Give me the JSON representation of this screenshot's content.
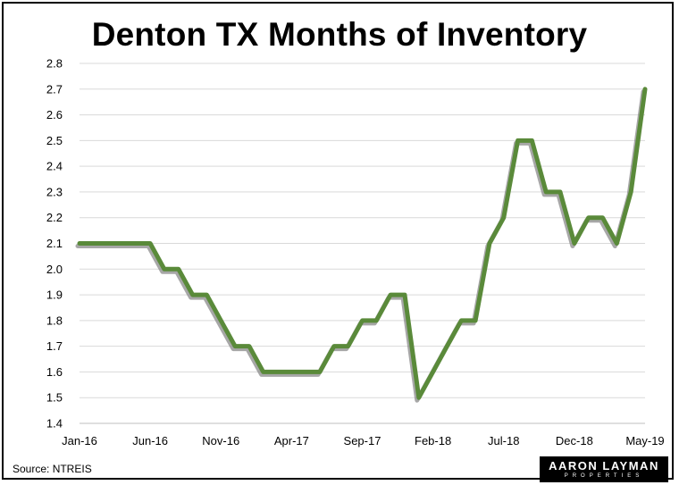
{
  "title": "Denton TX Months of Inventory",
  "source": "Source: NTREIS",
  "logo": {
    "main": "AARON LAYMAN",
    "sub": "PROPERTIES"
  },
  "colors": {
    "line": "#5a8a3a",
    "shadow": "#8a8a8a",
    "grid": "#d9d9d9",
    "axis": "#bfbfbf"
  },
  "chart_data": {
    "type": "line",
    "title": "Denton TX Months of Inventory",
    "xlabel": "",
    "ylabel": "",
    "ylim": [
      1.4,
      2.8
    ],
    "yticks": [
      "1.4",
      "1.5",
      "1.6",
      "1.7",
      "1.8",
      "1.9",
      "2.0",
      "2.1",
      "2.2",
      "2.3",
      "2.4",
      "2.5",
      "2.6",
      "2.7",
      "2.8"
    ],
    "grid": true,
    "legend": "none",
    "x_tick_labels": [
      {
        "index": 0,
        "label": "Jan-16"
      },
      {
        "index": 5,
        "label": "Jun-16"
      },
      {
        "index": 10,
        "label": "Nov-16"
      },
      {
        "index": 15,
        "label": "Apr-17"
      },
      {
        "index": 20,
        "label": "Sep-17"
      },
      {
        "index": 25,
        "label": "Feb-18"
      },
      {
        "index": 30,
        "label": "Jul-18"
      },
      {
        "index": 35,
        "label": "Dec-18"
      },
      {
        "index": 40,
        "label": "May-19"
      }
    ],
    "series": [
      {
        "x": [
          "Jan-16",
          "Feb-16",
          "Mar-16",
          "Apr-16",
          "May-16",
          "Jun-16",
          "Jul-16",
          "Aug-16",
          "Sep-16",
          "Oct-16",
          "Nov-16",
          "Dec-16",
          "Jan-17",
          "Feb-17",
          "Mar-17",
          "Apr-17",
          "May-17",
          "Jun-17",
          "Jul-17",
          "Aug-17",
          "Sep-17",
          "Oct-17",
          "Nov-17",
          "Dec-17",
          "Jan-18",
          "Feb-18",
          "Mar-18",
          "Apr-18",
          "May-18",
          "Jun-18",
          "Jul-18",
          "Aug-18",
          "Sep-18",
          "Oct-18",
          "Nov-18",
          "Dec-18",
          "Jan-19",
          "Feb-19",
          "Mar-19",
          "Apr-19",
          "May-19"
        ],
        "values": [
          2.1,
          2.1,
          2.1,
          2.1,
          2.1,
          2.1,
          2.0,
          2.0,
          1.9,
          1.9,
          1.8,
          1.7,
          1.7,
          1.6,
          1.6,
          1.6,
          1.6,
          1.6,
          1.7,
          1.7,
          1.8,
          1.8,
          1.9,
          1.9,
          1.5,
          1.6,
          1.7,
          1.8,
          1.8,
          2.1,
          2.2,
          2.5,
          2.5,
          2.3,
          2.3,
          2.1,
          2.2,
          2.2,
          2.1,
          2.3,
          2.7
        ]
      }
    ]
  }
}
